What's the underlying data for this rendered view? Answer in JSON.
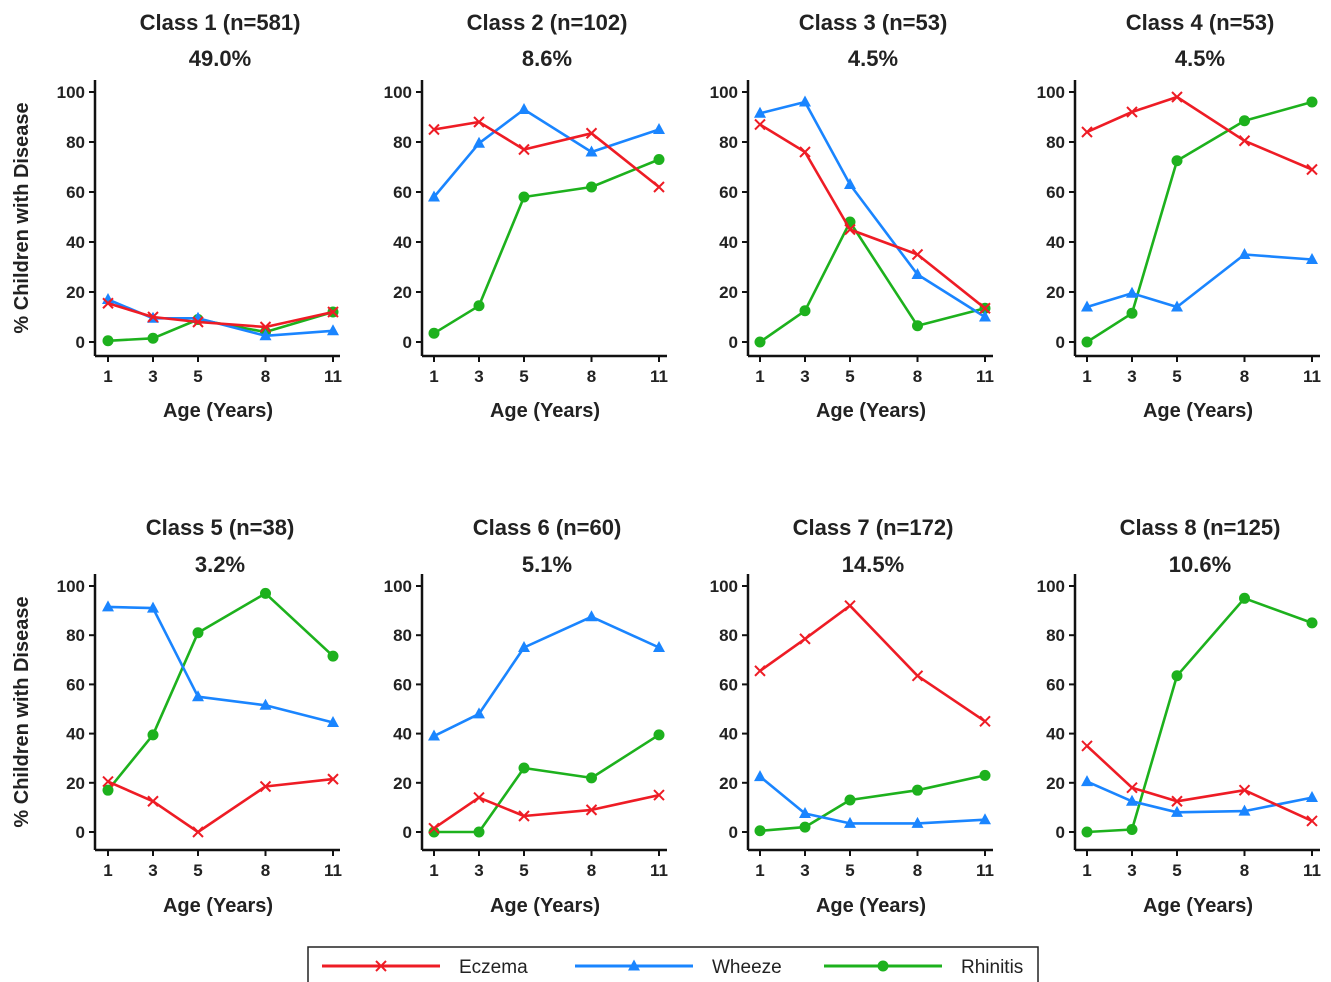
{
  "chart_data": {
    "type": "line",
    "x": [
      1,
      3,
      5,
      8,
      11
    ],
    "xticks": [
      "1",
      "3",
      "5",
      "8",
      "11"
    ],
    "yticks": [
      "0",
      "20",
      "40",
      "60",
      "80",
      "100"
    ],
    "xlabel": "Age (Years)",
    "ylabel": "% Children with Disease",
    "ylim": [
      -5,
      105
    ],
    "legend": {
      "placement": "bottom-center",
      "entries": [
        {
          "name": "Eczema",
          "color": "#ee1c25",
          "marker": "x"
        },
        {
          "name": "Wheeze",
          "color": "#1a85ff",
          "marker": "triangle"
        },
        {
          "name": "Rhinitis",
          "color": "#1db11d",
          "marker": "circle"
        }
      ]
    },
    "panels": [
      {
        "title": "Class 1 (n=581)",
        "subtitle": "49.0%",
        "series": [
          {
            "name": "Eczema",
            "values": [
              15.5,
              10,
              8,
              6,
              12
            ]
          },
          {
            "name": "Wheeze",
            "values": [
              17,
              9.5,
              9.5,
              2.5,
              4.5
            ]
          },
          {
            "name": "Rhinitis",
            "values": [
              0.5,
              1.5,
              9,
              4,
              12
            ]
          }
        ]
      },
      {
        "title": "Class 2 (n=102)",
        "subtitle": "8.6%",
        "series": [
          {
            "name": "Eczema",
            "values": [
              85,
              88,
              77,
              83.5,
              62
            ]
          },
          {
            "name": "Wheeze",
            "values": [
              58,
              79.5,
              93,
              76,
              85
            ]
          },
          {
            "name": "Rhinitis",
            "values": [
              3.5,
              14.5,
              58,
              62,
              73
            ]
          }
        ]
      },
      {
        "title": "Class 3 (n=53)",
        "subtitle": "4.5%",
        "series": [
          {
            "name": "Eczema",
            "values": [
              87,
              76,
              45,
              35,
              13.5
            ]
          },
          {
            "name": "Wheeze",
            "values": [
              91.5,
              96,
              63,
              27,
              10
            ]
          },
          {
            "name": "Rhinitis",
            "values": [
              0,
              12.5,
              48,
              6.5,
              13.5
            ]
          }
        ]
      },
      {
        "title": "Class 4 (n=53)",
        "subtitle": "4.5%",
        "series": [
          {
            "name": "Eczema",
            "values": [
              84,
              92,
              98,
              80.5,
              69
            ]
          },
          {
            "name": "Wheeze",
            "values": [
              14,
              19.5,
              14,
              35,
              33
            ]
          },
          {
            "name": "Rhinitis",
            "values": [
              0,
              11.5,
              72.5,
              88.5,
              96
            ]
          }
        ]
      },
      {
        "title": "Class 5 (n=38)",
        "subtitle": "3.2%",
        "series": [
          {
            "name": "Eczema",
            "values": [
              20.5,
              12.5,
              0,
              18.5,
              21.5
            ]
          },
          {
            "name": "Wheeze",
            "values": [
              91.5,
              91,
              55,
              51.5,
              44.5
            ]
          },
          {
            "name": "Rhinitis",
            "values": [
              17,
              39.5,
              81,
              97,
              71.5
            ]
          }
        ]
      },
      {
        "title": "Class 6 (n=60)",
        "subtitle": "5.1%",
        "series": [
          {
            "name": "Eczema",
            "values": [
              1.5,
              14,
              6.5,
              9,
              15
            ]
          },
          {
            "name": "Wheeze",
            "values": [
              39,
              48,
              75,
              87.5,
              75
            ]
          },
          {
            "name": "Rhinitis",
            "values": [
              0,
              0,
              26,
              22,
              39.5
            ]
          }
        ]
      },
      {
        "title": "Class 7 (n=172)",
        "subtitle": "14.5%",
        "series": [
          {
            "name": "Eczema",
            "values": [
              65.5,
              78.5,
              92,
              63.5,
              45
            ]
          },
          {
            "name": "Wheeze",
            "values": [
              22.5,
              7.5,
              3.5,
              3.5,
              5
            ]
          },
          {
            "name": "Rhinitis",
            "values": [
              0.5,
              2,
              13,
              17,
              23
            ]
          }
        ]
      },
      {
        "title": "Class 8 (n=125)",
        "subtitle": "10.6%",
        "series": [
          {
            "name": "Eczema",
            "values": [
              35,
              18,
              12.5,
              17,
              4.5
            ]
          },
          {
            "name": "Wheeze",
            "values": [
              20.5,
              12.5,
              8,
              8.5,
              14
            ]
          },
          {
            "name": "Rhinitis",
            "values": [
              0,
              1,
              63.5,
              95,
              85
            ]
          }
        ]
      }
    ]
  }
}
